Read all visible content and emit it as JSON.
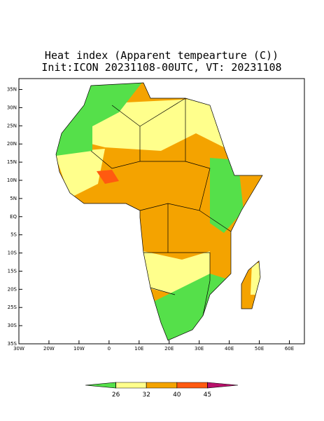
{
  "map": {
    "title": "Heat index (Apparent tempearture (C))",
    "subtitle": "Init:ICON 20231108-00UTC, VT: 20231108",
    "lon_range": [
      -30,
      65
    ],
    "lat_range": [
      -35,
      38
    ],
    "lon_ticks": [
      {
        "value": -30,
        "label": "30W"
      },
      {
        "value": -20,
        "label": "20W"
      },
      {
        "value": -10,
        "label": "10W"
      },
      0,
      {
        "value": 10,
        "label": "10E"
      },
      {
        "value": 20,
        "label": "20E"
      },
      {
        "value": 30,
        "label": "30E"
      },
      {
        "value": 40,
        "label": "40E"
      },
      {
        "value": 50,
        "label": "50E"
      },
      {
        "value": 60,
        "label": "60E"
      }
    ],
    "lat_ticks": [
      {
        "value": 35,
        "label": "35N"
      },
      {
        "value": 30,
        "label": "30N"
      },
      {
        "value": 25,
        "label": "25N"
      },
      {
        "value": 20,
        "label": "20N"
      },
      {
        "value": 15,
        "label": "15N"
      },
      {
        "value": 10,
        "label": "10N"
      },
      {
        "value": 5,
        "label": "5N"
      },
      {
        "value": 0,
        "label": "EQ"
      },
      {
        "value": -5,
        "label": "5S"
      },
      {
        "value": -10,
        "label": "10S"
      },
      {
        "value": -15,
        "label": "15S"
      },
      {
        "value": -20,
        "label": "20S"
      },
      {
        "value": -25,
        "label": "25S"
      },
      {
        "value": -30,
        "label": "30S"
      },
      {
        "value": -35,
        "label": "35S"
      }
    ],
    "colorbar": {
      "levels": [
        26,
        32,
        40,
        45
      ],
      "colors": [
        "#55e04a",
        "#ffff8c",
        "#f4a300",
        "#ff5a10",
        "#b8106a"
      ]
    }
  }
}
